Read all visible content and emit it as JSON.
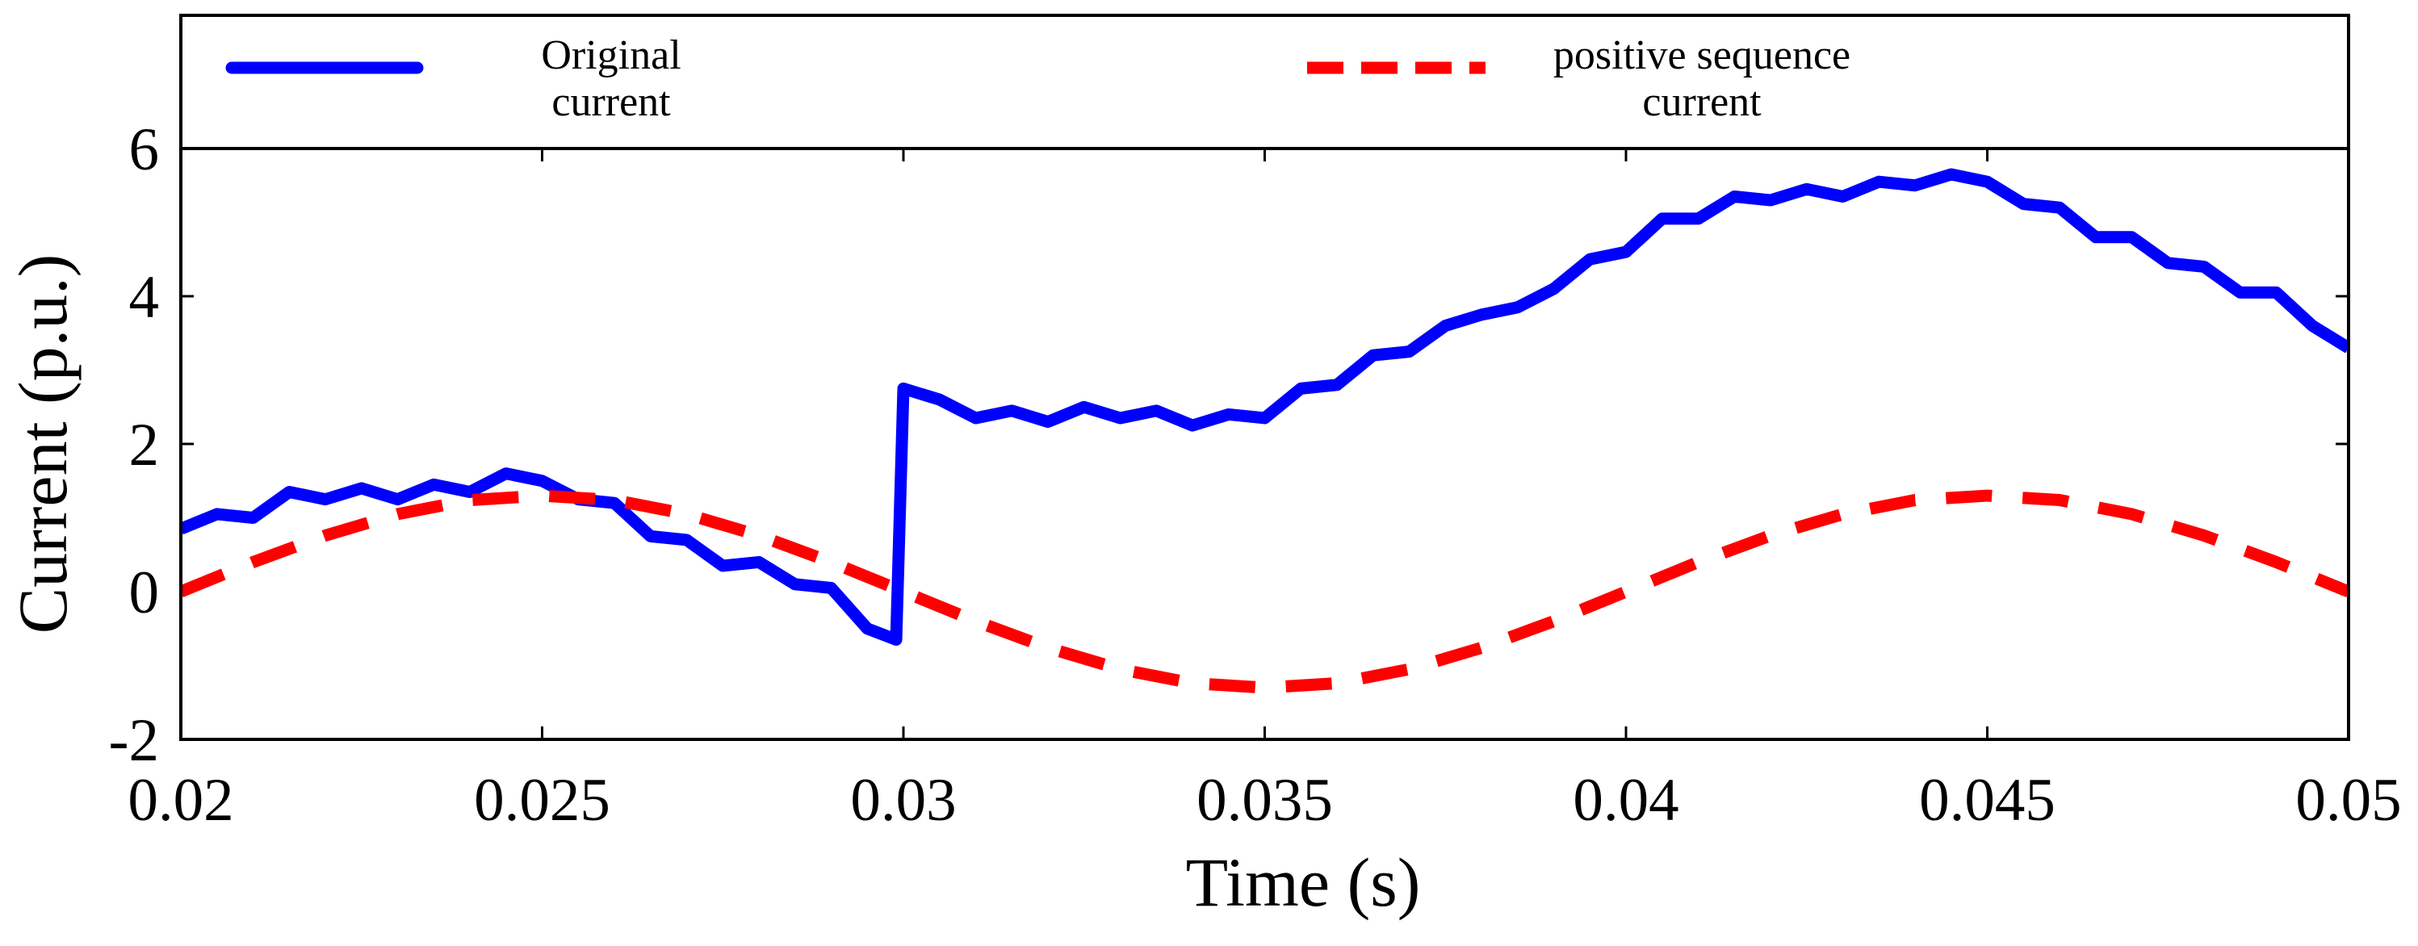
{
  "chart_data": {
    "type": "line",
    "xlabel": "Time (s)",
    "ylabel": "Current (p.u.)",
    "xlim": [
      0.02,
      0.05
    ],
    "xticks": [
      0.02,
      0.025,
      0.03,
      0.035,
      0.04,
      0.045,
      0.05
    ],
    "ylim": [
      -2,
      6
    ],
    "yticks": [
      -2,
      0,
      2,
      4,
      6
    ],
    "legend": "top",
    "series": [
      {
        "name": "Original current",
        "color": "#0000ff",
        "style": "solid",
        "x": [
          0.02,
          0.0205,
          0.021,
          0.0215,
          0.022,
          0.0225,
          0.023,
          0.0235,
          0.024,
          0.0245,
          0.025,
          0.0255,
          0.026,
          0.0265,
          0.027,
          0.0275,
          0.028,
          0.0285,
          0.029,
          0.0295,
          0.0299,
          0.03,
          0.0305,
          0.031,
          0.0315,
          0.032,
          0.0325,
          0.033,
          0.0335,
          0.034,
          0.0345,
          0.035,
          0.0355,
          0.036,
          0.0365,
          0.037,
          0.0375,
          0.038,
          0.0385,
          0.039,
          0.0395,
          0.04,
          0.0405,
          0.041,
          0.0415,
          0.042,
          0.0425,
          0.043,
          0.0435,
          0.044,
          0.0445,
          0.045,
          0.0455,
          0.046,
          0.0465,
          0.047,
          0.0475,
          0.048,
          0.0485,
          0.049,
          0.0495,
          0.05
        ],
        "values": [
          0.85,
          1.05,
          1.0,
          1.35,
          1.25,
          1.4,
          1.25,
          1.45,
          1.35,
          1.6,
          1.5,
          1.25,
          1.2,
          0.75,
          0.7,
          0.35,
          0.4,
          0.1,
          0.05,
          -0.5,
          -0.65,
          2.75,
          2.6,
          2.35,
          2.45,
          2.3,
          2.5,
          2.35,
          2.45,
          2.25,
          2.4,
          2.35,
          2.75,
          2.8,
          3.2,
          3.25,
          3.6,
          3.75,
          3.85,
          4.1,
          4.5,
          4.6,
          5.05,
          5.05,
          5.35,
          5.3,
          5.45,
          5.35,
          5.55,
          5.5,
          5.65,
          5.55,
          5.25,
          5.2,
          4.8,
          4.8,
          4.45,
          4.4,
          4.05,
          4.05,
          3.6,
          3.3
        ]
      },
      {
        "name": "positive sequence current",
        "color": "#ff0000",
        "style": "dashed",
        "x": [
          0.02,
          0.021,
          0.022,
          0.023,
          0.024,
          0.025,
          0.026,
          0.027,
          0.028,
          0.029,
          0.03,
          0.031,
          0.032,
          0.033,
          0.034,
          0.035,
          0.036,
          0.037,
          0.038,
          0.039,
          0.04,
          0.041,
          0.042,
          0.043,
          0.044,
          0.045,
          0.046,
          0.047,
          0.048,
          0.049,
          0.05
        ],
        "values": [
          0,
          0.4,
          0.76,
          1.05,
          1.24,
          1.3,
          1.24,
          1.05,
          0.76,
          0.4,
          0,
          -0.4,
          -0.76,
          -1.05,
          -1.24,
          -1.3,
          -1.24,
          -1.05,
          -0.76,
          -0.4,
          0,
          0.4,
          0.76,
          1.05,
          1.24,
          1.3,
          1.24,
          1.05,
          0.76,
          0.4,
          0
        ]
      }
    ]
  }
}
